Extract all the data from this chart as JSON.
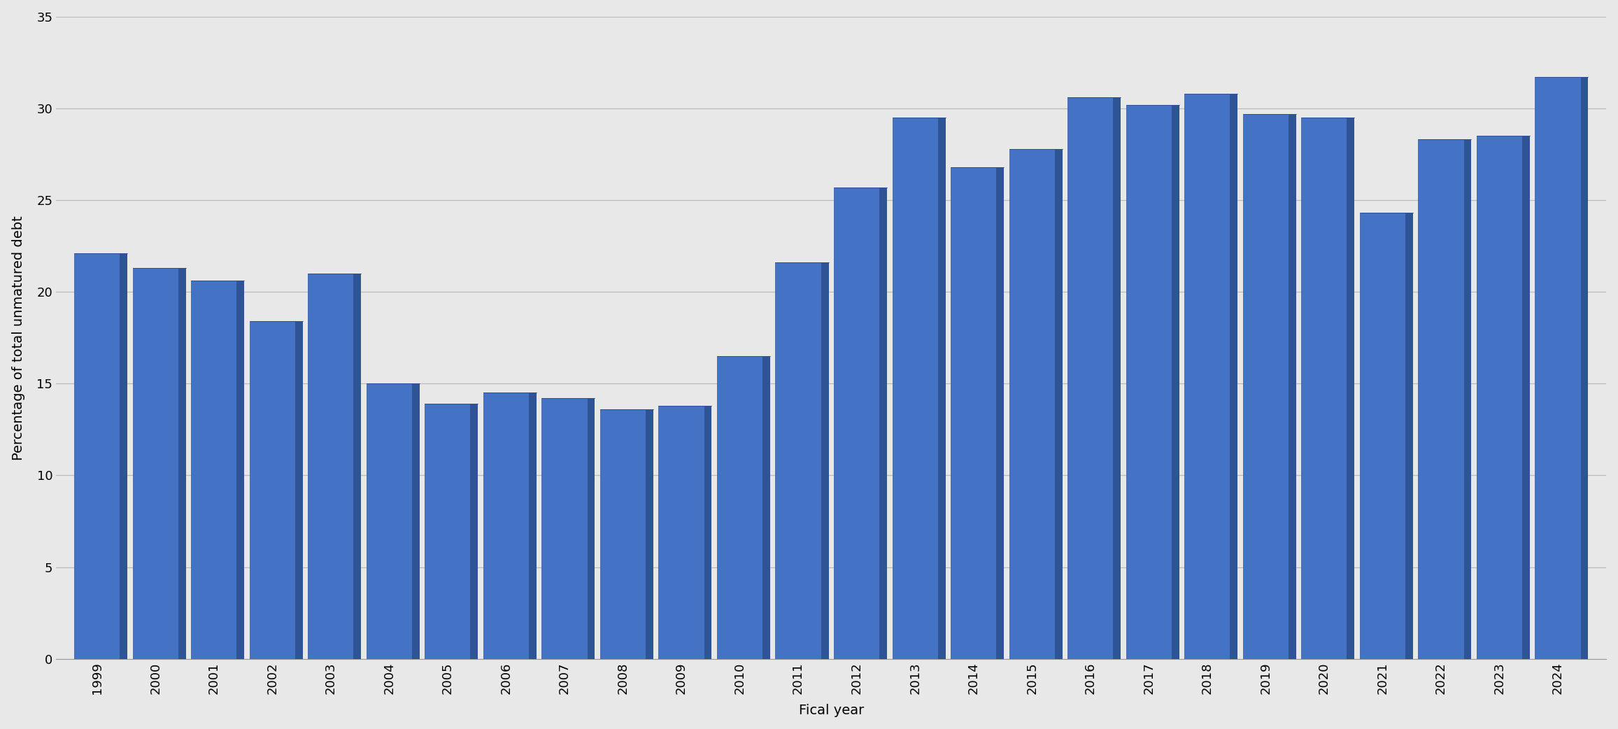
{
  "years": [
    "1999",
    "2000",
    "2001",
    "2002",
    "2003",
    "2004",
    "2005",
    "2006",
    "2007",
    "2008",
    "2009",
    "2010",
    "2011",
    "2012",
    "2013",
    "2014",
    "2015",
    "2016",
    "2017",
    "2018",
    "2019",
    "2020",
    "2021",
    "2022",
    "2023",
    "2024"
  ],
  "values": [
    22.1,
    21.3,
    20.6,
    18.4,
    21.0,
    15.0,
    13.9,
    14.5,
    14.2,
    13.6,
    13.8,
    16.5,
    21.6,
    25.7,
    29.5,
    26.8,
    27.8,
    30.6,
    30.2,
    30.8,
    29.7,
    29.5,
    24.3,
    28.3,
    28.5,
    31.7
  ],
  "bar_face_color": "#4472C4",
  "bar_side_color": "#2E5496",
  "bar_top_color": "#7AAAD4",
  "xlabel": "Fical year",
  "ylabel": "Percentage of total unmatured debt",
  "ylim": [
    0,
    35
  ],
  "yticks": [
    0,
    5,
    10,
    15,
    20,
    25,
    30,
    35
  ],
  "background_color": "#E8E8E8",
  "grid_color": "#BBBBBB",
  "label_fontsize": 14,
  "tick_fontsize": 13
}
